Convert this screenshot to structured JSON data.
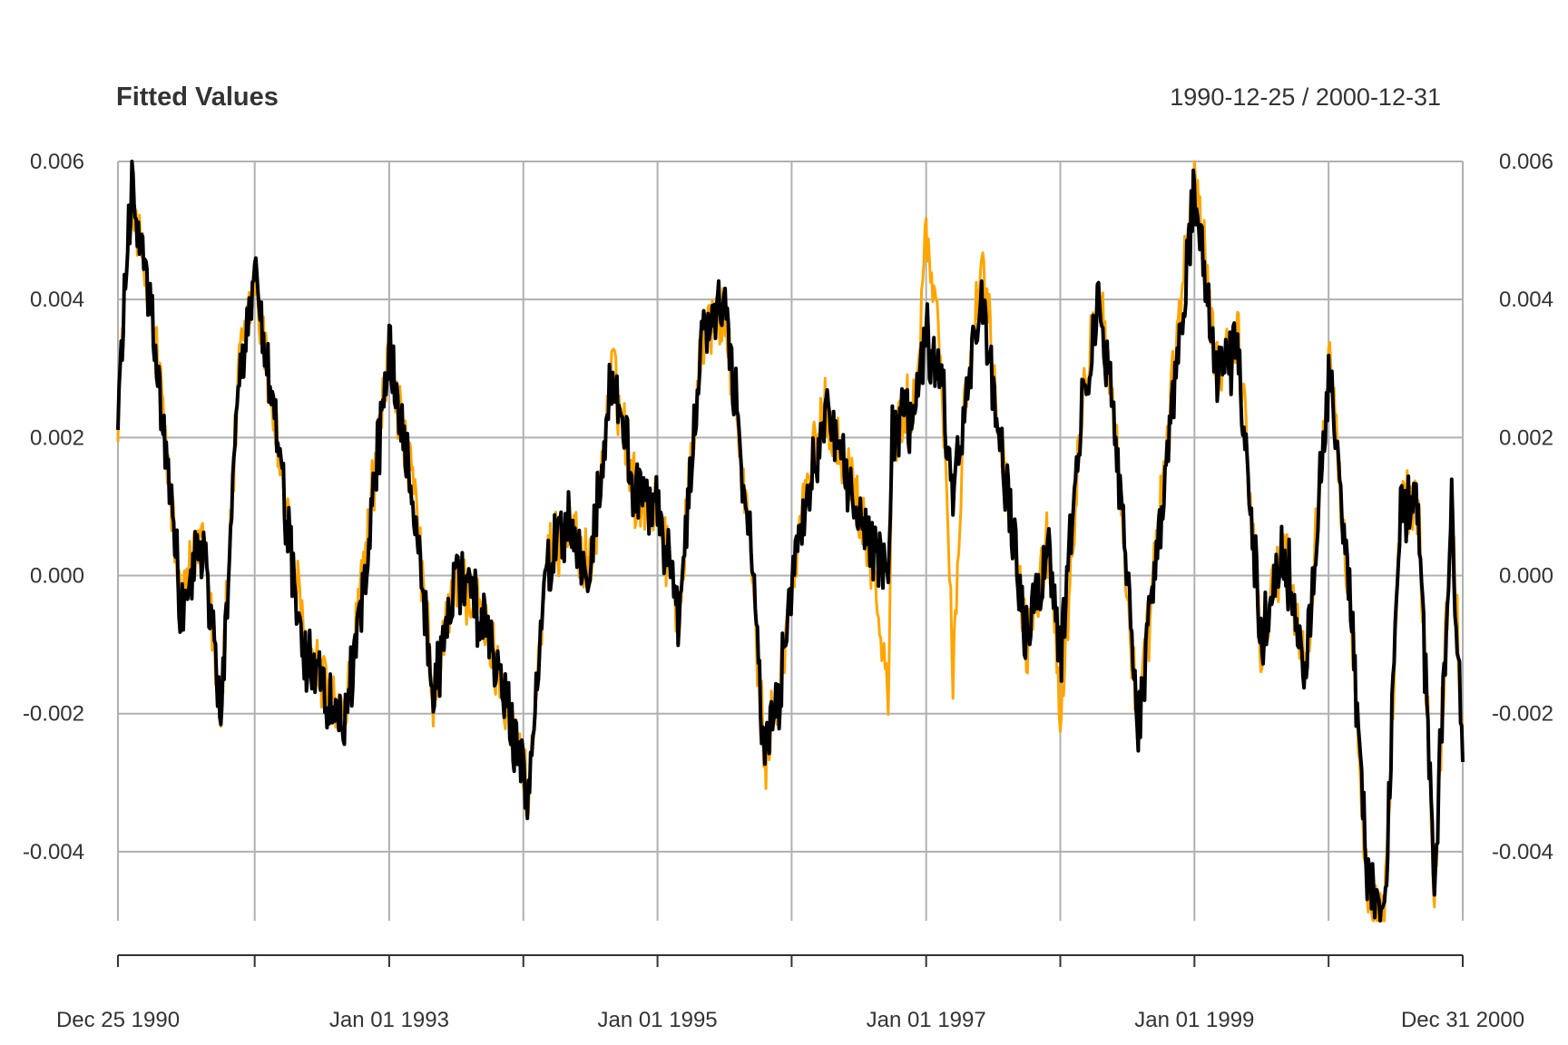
{
  "chart_data": {
    "type": "line",
    "title": "Fitted Values",
    "date_range_label": "1990-12-25 / 2000-12-31",
    "xlabel": "",
    "ylabel": "",
    "x_start": "1990-12-25",
    "x_end": "2000-12-31",
    "ylim": [
      -0.005,
      0.006
    ],
    "y_ticks": [
      "0.006",
      "0.004",
      "0.002",
      "0.000",
      "-0.002",
      "-0.004"
    ],
    "y_tick_values": [
      0.006,
      0.004,
      0.002,
      0.0,
      -0.002,
      -0.004
    ],
    "x_tick_labels": [
      "Dec 25 1990",
      "Jan 01 1993",
      "Jan 01 1995",
      "Jan 01 1997",
      "Jan 01 1999",
      "Dec 31 2000"
    ],
    "x_tick_dates": [
      "1990-12-25",
      "1993-01-01",
      "1995-01-01",
      "1997-01-01",
      "1999-01-01",
      "2000-12-31"
    ],
    "x_grid_dates": [
      "1990-12-25",
      "1992-01-01",
      "1993-01-01",
      "1994-01-01",
      "1995-01-01",
      "1996-01-01",
      "1997-01-01",
      "1998-01-01",
      "1999-01-01",
      "2000-01-01",
      "2000-12-31"
    ],
    "grid": true,
    "series": [
      {
        "color": "#FFA500",
        "x": [
          "1990-12-25",
          "1991-02-01",
          "1991-04-15",
          "1991-06-15",
          "1991-08-15",
          "1991-10-01",
          "1991-11-20",
          "1992-01-01",
          "1992-03-01",
          "1992-05-15",
          "1992-07-01",
          "1992-09-01",
          "1992-11-01",
          "1993-01-01",
          "1993-03-15",
          "1993-05-01",
          "1993-07-01",
          "1993-09-01",
          "1993-11-01",
          "1994-01-15",
          "1994-03-01",
          "1994-05-01",
          "1994-07-01",
          "1994-09-01",
          "1994-11-01",
          "1995-01-01",
          "1995-03-01",
          "1995-05-01",
          "1995-07-01",
          "1995-09-01",
          "1995-10-20",
          "1995-12-01",
          "1996-02-01",
          "1996-04-01",
          "1996-06-01",
          "1996-08-01",
          "1996-09-20",
          "1996-10-01",
          "1996-12-01",
          "1997-01-01",
          "1997-02-15",
          "1997-03-15",
          "1997-04-15",
          "1997-06-01",
          "1997-08-01",
          "1997-10-01",
          "1997-12-01",
          "1998-01-01",
          "1998-03-01",
          "1998-04-15",
          "1998-06-01",
          "1998-08-01",
          "1998-10-01",
          "1998-11-15",
          "1999-01-01",
          "1999-03-01",
          "1999-05-01",
          "1999-07-01",
          "1999-09-01",
          "1999-11-01",
          "2000-01-01",
          "2000-03-01",
          "2000-04-15",
          "2000-06-01",
          "2000-07-15",
          "2000-09-01",
          "2000-10-15",
          "2000-12-01",
          "2000-12-31"
        ],
        "values": [
          0.0025,
          0.0055,
          0.003,
          -0.0005,
          0.0008,
          -0.002,
          0.003,
          0.0043,
          0.002,
          -0.001,
          -0.0015,
          -0.0022,
          0.0005,
          0.0032,
          0.001,
          -0.0018,
          0.0,
          -0.0005,
          -0.0015,
          -0.0032,
          0.0,
          0.0008,
          0.0,
          0.003,
          0.0012,
          0.001,
          -0.0005,
          0.0035,
          0.0038,
          0.001,
          -0.0027,
          -0.0015,
          0.001,
          0.0025,
          0.0015,
          0.0005,
          -0.0018,
          0.002,
          0.0025,
          0.005,
          0.0028,
          -0.0015,
          0.0025,
          0.0045,
          0.0015,
          -0.001,
          0.0005,
          -0.002,
          0.0025,
          0.0044,
          0.002,
          -0.0023,
          0.001,
          0.0034,
          0.0059,
          0.003,
          0.0035,
          -0.001,
          0.0005,
          -0.0015,
          0.0032,
          -0.0005,
          -0.0045,
          -0.005,
          0.001,
          0.001,
          -0.0045,
          0.001,
          -0.0025
        ]
      },
      {
        "color": "#000000",
        "x": [
          "1990-12-25",
          "1991-02-01",
          "1991-04-15",
          "1991-06-15",
          "1991-08-15",
          "1991-10-01",
          "1991-11-20",
          "1992-01-01",
          "1992-03-01",
          "1992-05-15",
          "1992-07-01",
          "1992-09-01",
          "1992-11-01",
          "1993-01-01",
          "1993-03-15",
          "1993-05-01",
          "1993-07-01",
          "1993-09-01",
          "1993-11-01",
          "1994-01-15",
          "1994-03-01",
          "1994-05-01",
          "1994-07-01",
          "1994-09-01",
          "1994-11-01",
          "1995-01-01",
          "1995-03-01",
          "1995-05-01",
          "1995-07-01",
          "1995-09-01",
          "1995-10-20",
          "1995-12-01",
          "1996-02-01",
          "1996-04-01",
          "1996-06-01",
          "1996-08-01",
          "1996-09-20",
          "1996-10-01",
          "1996-12-01",
          "1997-01-01",
          "1997-02-15",
          "1997-03-15",
          "1997-04-15",
          "1997-06-01",
          "1997-08-01",
          "1997-10-01",
          "1997-12-01",
          "1998-01-01",
          "1998-03-01",
          "1998-04-15",
          "1998-06-01",
          "1998-08-01",
          "1998-10-01",
          "1998-11-15",
          "1999-01-01",
          "1999-03-01",
          "1999-05-01",
          "1999-07-01",
          "1999-09-01",
          "1999-11-01",
          "2000-01-01",
          "2000-03-01",
          "2000-04-15",
          "2000-06-01",
          "2000-07-15",
          "2000-09-01",
          "2000-10-15",
          "2000-12-01",
          "2000-12-31"
        ],
        "values": [
          0.0025,
          0.0058,
          0.0028,
          -0.0005,
          0.0005,
          -0.002,
          0.0028,
          0.0044,
          0.002,
          -0.0012,
          -0.0016,
          -0.0022,
          0.0003,
          0.0033,
          0.001,
          -0.0018,
          0.0,
          -0.0005,
          -0.0015,
          -0.0032,
          0.0,
          0.0008,
          0.0,
          0.003,
          0.0012,
          0.001,
          -0.0006,
          0.0035,
          0.004,
          0.001,
          -0.0027,
          -0.0016,
          0.001,
          0.0024,
          0.0014,
          0.0005,
          0.0,
          0.002,
          0.0024,
          0.0035,
          0.0026,
          0.001,
          0.0024,
          0.004,
          0.0015,
          -0.0009,
          0.0004,
          -0.0012,
          0.0024,
          0.0041,
          0.002,
          -0.0022,
          0.0008,
          0.0032,
          0.0056,
          0.003,
          0.0032,
          -0.0009,
          0.0004,
          -0.0014,
          0.003,
          -0.0004,
          -0.0044,
          -0.0049,
          0.0009,
          0.001,
          -0.0044,
          0.0009,
          -0.0027
        ]
      }
    ]
  }
}
